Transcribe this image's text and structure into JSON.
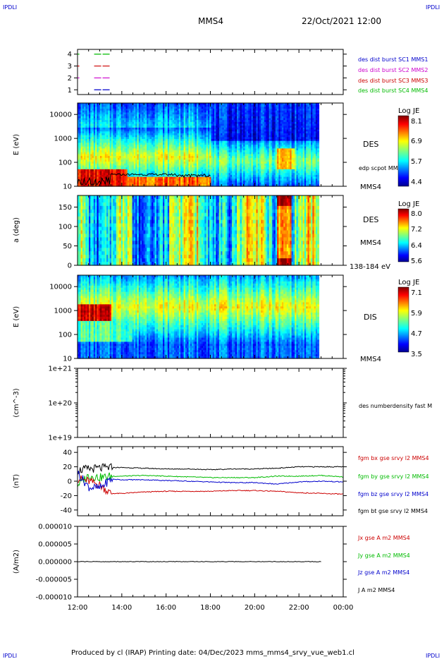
{
  "header": {
    "corner_left": "IPDLI",
    "corner_right": "IPDLI",
    "spacecraft": "MMS4",
    "datetime": "22/Oct/2021 12:00"
  },
  "footer": {
    "text": "Produced by cl (IRAP)   Printing date: 04/Dec/2023   mms_mms4_srvy_vue_web1.cl",
    "corner_left": "IPDLI",
    "corner_right": "IPDLI"
  },
  "colors": {
    "blue": "#0000cc",
    "magenta": "#cc00cc",
    "red": "#cc0000",
    "green": "#00bb00",
    "black": "#000000"
  },
  "chart_data": [
    {
      "type": "line",
      "panel": "spacecraft-status",
      "yticks": [
        "1",
        "2",
        "3",
        "4"
      ],
      "ylim": [
        0.6,
        4.4
      ],
      "legend": [
        {
          "label": "des dist burst SC1 MMS1",
          "color": "#0000cc"
        },
        {
          "label": "des dist burst SC2 MMS2",
          "color": "#cc00cc"
        },
        {
          "label": "des dist burst SC3 MMS3",
          "color": "#cc0000"
        },
        {
          "label": "des dist burst SC4 MMS4",
          "color": "#00bb00"
        }
      ],
      "segments": [
        {
          "sc": 1,
          "x": [
            [
              "12:45",
              "13:30"
            ]
          ]
        },
        {
          "sc": 2,
          "x": [
            [
              "12:00",
              "12:05"
            ],
            [
              "12:45",
              "13:30"
            ]
          ]
        },
        {
          "sc": 3,
          "x": [
            [
              "12:00",
              "12:05"
            ],
            [
              "12:45",
              "13:30"
            ]
          ]
        },
        {
          "sc": 4,
          "x": [
            [
              "12:00",
              "12:05"
            ],
            [
              "12:45",
              "13:30"
            ]
          ]
        }
      ]
    },
    {
      "type": "heatmap",
      "panel": "des-energy",
      "ylabel": "E (eV)",
      "yscale": "log",
      "ylim": [
        10,
        30000
      ],
      "yticks": [
        "10",
        "100",
        "1000",
        "10000"
      ],
      "right_label": "DES",
      "overlay_label": "edp scpot MMS4",
      "bottom_right_label": "MMS4",
      "colorbar": {
        "title": "Log JE",
        "ticks": [
          "8.1",
          "6.9",
          "5.7",
          "4.4"
        ],
        "range": [
          4.4,
          8.1
        ]
      }
    },
    {
      "type": "heatmap",
      "panel": "des-pitch",
      "ylabel": "a (deg)",
      "ylim": [
        0,
        180
      ],
      "yticks": [
        "0",
        "50",
        "100",
        "150"
      ],
      "right_label": "DES",
      "right_label2": "MMS4",
      "energy_range": "138-184 eV",
      "colorbar": {
        "title": "Log JE",
        "ticks": [
          "8.0",
          "7.2",
          "6.4",
          "5.6"
        ],
        "range": [
          5.6,
          8.0
        ]
      }
    },
    {
      "type": "heatmap",
      "panel": "dis-energy",
      "ylabel": "E (eV)",
      "yscale": "log",
      "ylim": [
        10,
        30000
      ],
      "yticks": [
        "10",
        "100",
        "1000",
        "10000"
      ],
      "right_label": "DIS",
      "bottom_right_label": "MMS4",
      "colorbar": {
        "title": "Log JE",
        "ticks": [
          "7.1",
          "5.9",
          "4.7",
          "3.5"
        ],
        "range": [
          3.5,
          7.1
        ]
      }
    },
    {
      "type": "line",
      "panel": "density",
      "ylabel": "(cm^-3)",
      "yscale": "log",
      "ylim": [
        1e+19,
        1e+21
      ],
      "yticks": [
        "1e+19",
        "1e+20",
        "1e+21"
      ],
      "series": [
        {
          "name": "des numberdensity fast M",
          "values": []
        }
      ]
    },
    {
      "type": "line",
      "panel": "magnetic-field",
      "ylabel": "(nT)",
      "ylim": [
        -48,
        48
      ],
      "yticks": [
        "-40",
        "-20",
        "0",
        "20",
        "40"
      ],
      "x_hours": [
        12,
        12.5,
        13,
        13.5,
        14,
        15,
        16,
        17,
        18,
        19,
        20,
        21,
        22,
        23,
        24
      ],
      "series": [
        {
          "name": "fgm bx gse srvy l2 MMS4",
          "color": "#cc0000",
          "values": [
            4,
            0,
            -5,
            -17,
            -17,
            -15,
            -14,
            -14,
            -14,
            -13,
            -13,
            -14,
            -16,
            -17,
            -18
          ]
        },
        {
          "name": "fgm by gse srvy l2 MMS4",
          "color": "#00bb00",
          "values": [
            -5,
            8,
            5,
            7,
            7,
            8,
            7,
            6,
            5,
            5,
            5,
            7,
            7,
            8,
            6
          ]
        },
        {
          "name": "fgm bz gse srvy l2 MMS4",
          "color": "#0000cc",
          "values": [
            12,
            -8,
            -10,
            3,
            2,
            2,
            1,
            0,
            -1,
            -2,
            -2,
            -4,
            -1,
            0,
            -1
          ]
        },
        {
          "name": "fgm bt gse srvy l2 MMS4",
          "color": "#000000",
          "values": [
            15,
            17,
            18,
            19,
            19,
            18,
            17,
            17,
            16,
            17,
            17,
            18,
            20,
            20,
            20
          ]
        }
      ]
    },
    {
      "type": "line",
      "panel": "current",
      "ylabel": "(A/m2)",
      "ylim": [
        -1e-05,
        1e-05
      ],
      "yticks": [
        "-0.000010",
        "-0.000005",
        "0.000000",
        "0.000005",
        "0.000010"
      ],
      "series": [
        {
          "name": "Jx gse A m2 MMS4",
          "color": "#cc0000",
          "values": [
            0,
            0
          ]
        },
        {
          "name": "Jy gse A m2 MMS4",
          "color": "#00bb00",
          "values": [
            0,
            0
          ]
        },
        {
          "name": "Jz gse A m2 MMS4",
          "color": "#0000cc",
          "values": [
            0,
            0
          ]
        },
        {
          "name": "J A m2 MMS4",
          "color": "#000000",
          "values": [
            0,
            0
          ]
        }
      ]
    }
  ],
  "time_axis": {
    "ticks": [
      "12:00",
      "14:00",
      "16:00",
      "18:00",
      "20:00",
      "22:00",
      "00:00"
    ],
    "range_hours": [
      12,
      24
    ]
  }
}
